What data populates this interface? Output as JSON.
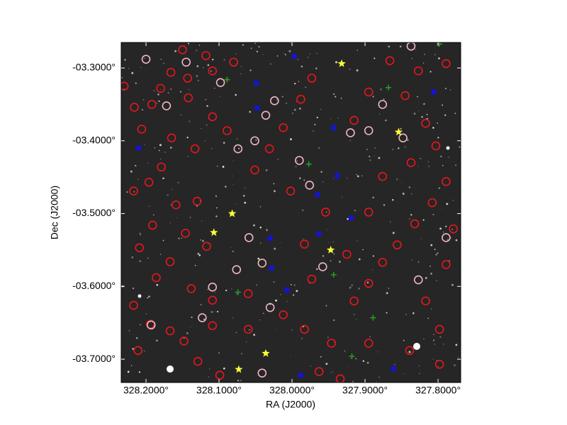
{
  "chart_data": {
    "type": "scatter",
    "xlabel": "RA (J2000)",
    "ylabel": "Dec (J2000)",
    "xlim": [
      328.234,
      327.769
    ],
    "ylim": [
      -3.732,
      -3.265
    ],
    "xticks": [
      {
        "value": 328.2,
        "label": "328.2000°"
      },
      {
        "value": 328.1,
        "label": "328.1000°"
      },
      {
        "value": 328.0,
        "label": "328.0000°"
      },
      {
        "value": 327.9,
        "label": "327.9000°"
      },
      {
        "value": 327.8,
        "label": "327.8000°"
      }
    ],
    "yticks": [
      {
        "value": -3.3,
        "label": "-03.3000°"
      },
      {
        "value": -3.4,
        "label": "-03.4000°"
      },
      {
        "value": -3.5,
        "label": "-03.5000°"
      },
      {
        "value": -3.6,
        "label": "-03.6000°"
      },
      {
        "value": -3.7,
        "label": "-03.7000°"
      }
    ],
    "grid": false,
    "series": [
      {
        "color": "#e8161b",
        "marker": "circle",
        "x": [
          328.23,
          328.216,
          328.192,
          328.206,
          328.166,
          328.143,
          328.118,
          328.109,
          328.08,
          328.15,
          328.18,
          328.142,
          328.109,
          328.089,
          328.165,
          328.133,
          328.179,
          328.196,
          328.217,
          328.159,
          328.13,
          328.191,
          328.146,
          328.117,
          328.209,
          328.167,
          328.186,
          328.138,
          328.109,
          328.217,
          328.194,
          328.167,
          328.148,
          328.211,
          328.129,
          328.099,
          328.06,
          328.012,
          327.983,
          327.946,
          327.915,
          327.895,
          327.876,
          327.856,
          327.832,
          327.808,
          327.789,
          327.803,
          327.817,
          327.845,
          327.827,
          327.789,
          327.866,
          327.895,
          327.915,
          327.973,
          327.988,
          328.012,
          328.031,
          328.051,
          328.002,
          327.954,
          327.983,
          327.925,
          327.895,
          327.876,
          327.837,
          327.817,
          327.798,
          327.839,
          327.798,
          327.895,
          327.963,
          327.934,
          328.06,
          328.109,
          327.789,
          327.779,
          327.973
        ],
        "y": [
          -3.325,
          -3.354,
          -3.35,
          -3.384,
          -3.306,
          -3.314,
          -3.283,
          -3.304,
          -3.292,
          -3.275,
          -3.328,
          -3.341,
          -3.367,
          -3.386,
          -3.396,
          -3.411,
          -3.436,
          -3.457,
          -3.469,
          -3.488,
          -3.483,
          -3.516,
          -3.527,
          -3.545,
          -3.547,
          -3.566,
          -3.588,
          -3.603,
          -3.619,
          -3.626,
          -3.652,
          -3.661,
          -3.675,
          -3.688,
          -3.703,
          -3.722,
          -3.61,
          -3.639,
          -3.659,
          -3.678,
          -3.62,
          -3.596,
          -3.567,
          -3.543,
          -3.514,
          -3.485,
          -3.456,
          -3.407,
          -3.376,
          -3.338,
          -3.304,
          -3.294,
          -3.29,
          -3.333,
          -3.372,
          -3.314,
          -3.343,
          -3.382,
          -3.411,
          -3.44,
          -3.469,
          -3.498,
          -3.542,
          -3.556,
          -3.498,
          -3.449,
          -3.43,
          -3.62,
          -3.659,
          -3.688,
          -3.707,
          -3.678,
          -3.717,
          -3.727,
          -3.659,
          -3.654,
          -3.57,
          -3.521,
          -3.59
        ]
      },
      {
        "color": "#f2b6c0",
        "marker": "circle",
        "x": [
          328.2,
          328.145,
          328.172,
          328.098,
          328.036,
          328.024,
          328.051,
          328.074,
          327.99,
          327.976,
          328.059,
          328.041,
          328.076,
          328.109,
          328.03,
          327.958,
          327.895,
          327.92,
          327.848,
          327.876,
          327.827,
          327.789,
          328.041,
          328.193,
          328.123,
          327.837
        ],
        "y": [
          -3.288,
          -3.292,
          -3.352,
          -3.32,
          -3.365,
          -3.345,
          -3.4,
          -3.411,
          -3.427,
          -3.461,
          -3.533,
          -3.568,
          -3.577,
          -3.601,
          -3.629,
          -3.573,
          -3.386,
          -3.389,
          -3.396,
          -3.35,
          -3.591,
          -3.533,
          -3.719,
          -3.653,
          -3.643,
          -3.27
        ]
      },
      {
        "color": "#1414d2",
        "marker": "dot",
        "x": [
          327.997,
          328.049,
          328.048,
          327.943,
          328.21,
          327.938,
          327.965,
          327.919,
          327.963,
          328.03,
          328.028,
          328.007,
          327.861,
          327.988,
          327.806
        ],
        "y": [
          -3.284,
          -3.321,
          -3.355,
          -3.382,
          -3.41,
          -3.448,
          -3.474,
          -3.506,
          -3.528,
          -3.534,
          -3.575,
          -3.605,
          -3.713,
          -3.722,
          -3.333
        ]
      },
      {
        "color": "#2a9a2a",
        "marker": "plus",
        "x": [
          328.089,
          327.868,
          327.977,
          328.074,
          327.943,
          327.889,
          327.918,
          327.798
        ],
        "y": [
          -3.316,
          -3.327,
          -3.432,
          -3.608,
          -3.584,
          -3.643,
          -3.696,
          -3.267
        ]
      },
      {
        "color": "#ffff33",
        "marker": "star",
        "x": [
          327.932,
          327.854,
          328.082,
          328.107,
          327.947,
          328.036,
          328.073
        ],
        "y": [
          -3.294,
          -3.388,
          -3.5,
          -3.526,
          -3.55,
          -3.692,
          -3.714
        ]
      }
    ]
  }
}
